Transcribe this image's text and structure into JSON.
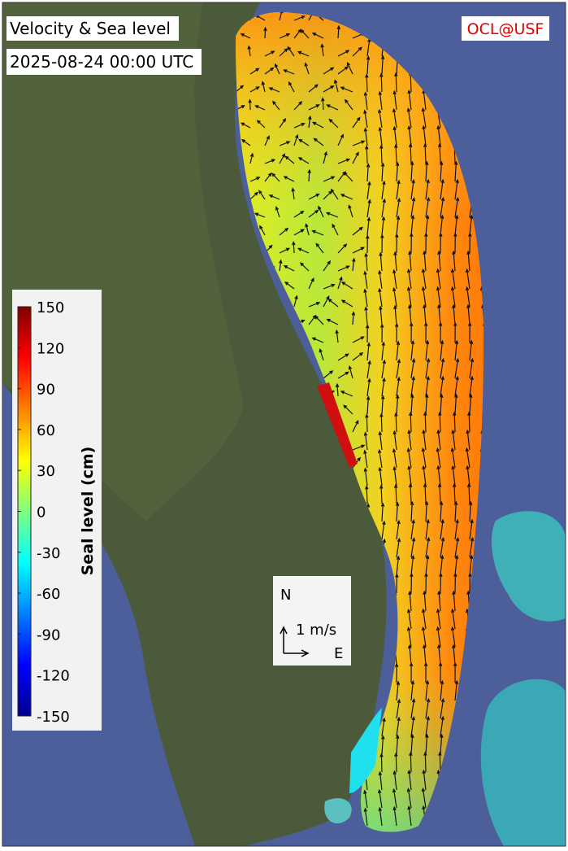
{
  "title": "Velocity & Sea level",
  "timestamp": "2025-08-24 00:00 UTC",
  "credit": "OCL@USF",
  "colorbar": {
    "label": "Seal level (cm)",
    "lim": [
      -150,
      150
    ],
    "ticks": [
      150,
      120,
      90,
      60,
      30,
      0,
      -30,
      -60,
      -90,
      -120,
      -150
    ]
  },
  "scale": {
    "north": "N",
    "speed": "1 m/s",
    "east": "E"
  }
}
